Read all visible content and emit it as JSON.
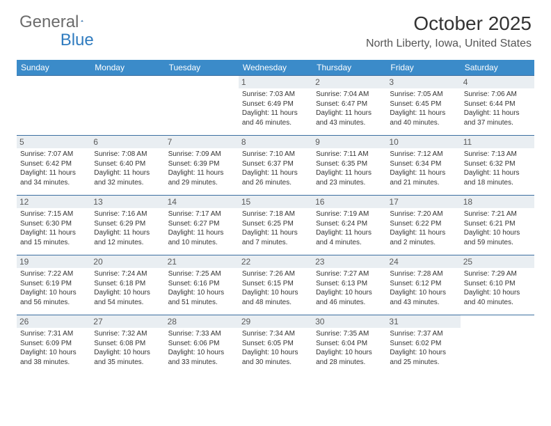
{
  "logo": {
    "part1": "General",
    "part2": "Blue"
  },
  "title": "October 2025",
  "location": "North Liberty, Iowa, United States",
  "header_bg": "#3b8bc9",
  "header_fg": "#ffffff",
  "daybar_bg": "#e9eef2",
  "border_color": "#3b6ea0",
  "weekdays": [
    "Sunday",
    "Monday",
    "Tuesday",
    "Wednesday",
    "Thursday",
    "Friday",
    "Saturday"
  ],
  "weeks": [
    [
      null,
      null,
      null,
      {
        "n": "1",
        "sunrise": "7:03 AM",
        "sunset": "6:49 PM",
        "day_h": 11,
        "day_m": 46
      },
      {
        "n": "2",
        "sunrise": "7:04 AM",
        "sunset": "6:47 PM",
        "day_h": 11,
        "day_m": 43
      },
      {
        "n": "3",
        "sunrise": "7:05 AM",
        "sunset": "6:45 PM",
        "day_h": 11,
        "day_m": 40
      },
      {
        "n": "4",
        "sunrise": "7:06 AM",
        "sunset": "6:44 PM",
        "day_h": 11,
        "day_m": 37
      }
    ],
    [
      {
        "n": "5",
        "sunrise": "7:07 AM",
        "sunset": "6:42 PM",
        "day_h": 11,
        "day_m": 34
      },
      {
        "n": "6",
        "sunrise": "7:08 AM",
        "sunset": "6:40 PM",
        "day_h": 11,
        "day_m": 32
      },
      {
        "n": "7",
        "sunrise": "7:09 AM",
        "sunset": "6:39 PM",
        "day_h": 11,
        "day_m": 29
      },
      {
        "n": "8",
        "sunrise": "7:10 AM",
        "sunset": "6:37 PM",
        "day_h": 11,
        "day_m": 26
      },
      {
        "n": "9",
        "sunrise": "7:11 AM",
        "sunset": "6:35 PM",
        "day_h": 11,
        "day_m": 23
      },
      {
        "n": "10",
        "sunrise": "7:12 AM",
        "sunset": "6:34 PM",
        "day_h": 11,
        "day_m": 21
      },
      {
        "n": "11",
        "sunrise": "7:13 AM",
        "sunset": "6:32 PM",
        "day_h": 11,
        "day_m": 18
      }
    ],
    [
      {
        "n": "12",
        "sunrise": "7:15 AM",
        "sunset": "6:30 PM",
        "day_h": 11,
        "day_m": 15
      },
      {
        "n": "13",
        "sunrise": "7:16 AM",
        "sunset": "6:29 PM",
        "day_h": 11,
        "day_m": 12
      },
      {
        "n": "14",
        "sunrise": "7:17 AM",
        "sunset": "6:27 PM",
        "day_h": 11,
        "day_m": 10
      },
      {
        "n": "15",
        "sunrise": "7:18 AM",
        "sunset": "6:25 PM",
        "day_h": 11,
        "day_m": 7
      },
      {
        "n": "16",
        "sunrise": "7:19 AM",
        "sunset": "6:24 PM",
        "day_h": 11,
        "day_m": 4
      },
      {
        "n": "17",
        "sunrise": "7:20 AM",
        "sunset": "6:22 PM",
        "day_h": 11,
        "day_m": 2
      },
      {
        "n": "18",
        "sunrise": "7:21 AM",
        "sunset": "6:21 PM",
        "day_h": 10,
        "day_m": 59
      }
    ],
    [
      {
        "n": "19",
        "sunrise": "7:22 AM",
        "sunset": "6:19 PM",
        "day_h": 10,
        "day_m": 56
      },
      {
        "n": "20",
        "sunrise": "7:24 AM",
        "sunset": "6:18 PM",
        "day_h": 10,
        "day_m": 54
      },
      {
        "n": "21",
        "sunrise": "7:25 AM",
        "sunset": "6:16 PM",
        "day_h": 10,
        "day_m": 51
      },
      {
        "n": "22",
        "sunrise": "7:26 AM",
        "sunset": "6:15 PM",
        "day_h": 10,
        "day_m": 48
      },
      {
        "n": "23",
        "sunrise": "7:27 AM",
        "sunset": "6:13 PM",
        "day_h": 10,
        "day_m": 46
      },
      {
        "n": "24",
        "sunrise": "7:28 AM",
        "sunset": "6:12 PM",
        "day_h": 10,
        "day_m": 43
      },
      {
        "n": "25",
        "sunrise": "7:29 AM",
        "sunset": "6:10 PM",
        "day_h": 10,
        "day_m": 40
      }
    ],
    [
      {
        "n": "26",
        "sunrise": "7:31 AM",
        "sunset": "6:09 PM",
        "day_h": 10,
        "day_m": 38
      },
      {
        "n": "27",
        "sunrise": "7:32 AM",
        "sunset": "6:08 PM",
        "day_h": 10,
        "day_m": 35
      },
      {
        "n": "28",
        "sunrise": "7:33 AM",
        "sunset": "6:06 PM",
        "day_h": 10,
        "day_m": 33
      },
      {
        "n": "29",
        "sunrise": "7:34 AM",
        "sunset": "6:05 PM",
        "day_h": 10,
        "day_m": 30
      },
      {
        "n": "30",
        "sunrise": "7:35 AM",
        "sunset": "6:04 PM",
        "day_h": 10,
        "day_m": 28
      },
      {
        "n": "31",
        "sunrise": "7:37 AM",
        "sunset": "6:02 PM",
        "day_h": 10,
        "day_m": 25
      },
      null
    ]
  ],
  "labels": {
    "sunrise": "Sunrise:",
    "sunset": "Sunset:",
    "daylight": "Daylight:",
    "hours": "hours",
    "and": "and",
    "minutes": "minutes."
  }
}
